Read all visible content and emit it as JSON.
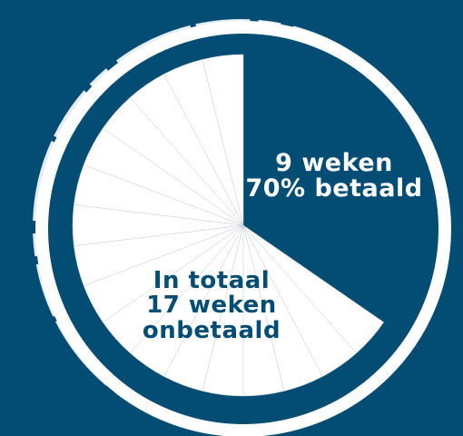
{
  "colors": {
    "background": "#034d75",
    "unpaid_fill": "#ffffff",
    "paid_fill": "#034d75",
    "divider": "#c8ced6",
    "ring": "#ffffff"
  },
  "chart_data": {
    "type": "pie",
    "total_slices": 26,
    "series": [
      {
        "label_lines": [
          "9 weken",
          "70% betaald"
        ],
        "slices": 9,
        "status": "paid"
      },
      {
        "label_lines": [
          "In totaal",
          "17 weken",
          "onbetaald"
        ],
        "slices": 17,
        "status": "unpaid"
      }
    ]
  }
}
